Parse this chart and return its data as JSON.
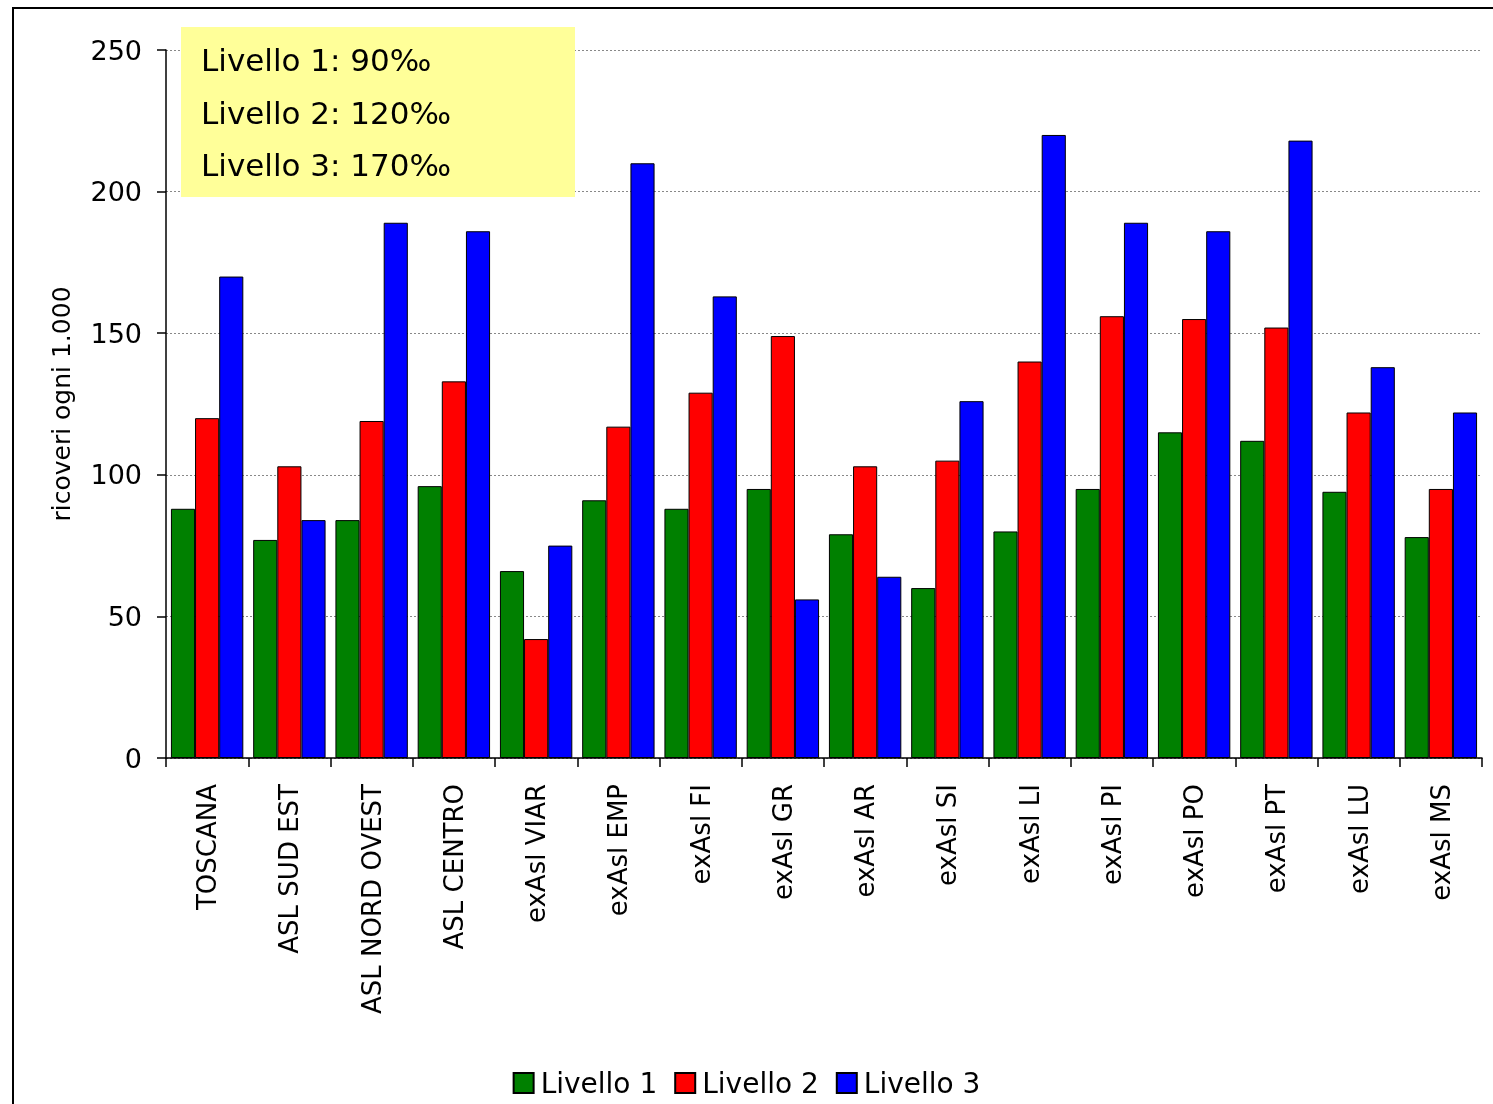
{
  "chart_data": {
    "type": "bar",
    "ylabel": "ricoveri ogni 1.000",
    "categories": [
      "TOSCANA",
      "ASL SUD EST",
      "ASL NORD OVEST",
      "ASL CENTRO",
      "exAsl VIAR",
      "exAsl EMP",
      "exAsl FI",
      "exAsl GR",
      "exAsl AR",
      "exAsl SI",
      "exAsl LI",
      "exAsl PI",
      "exAsl PO",
      "exAsl PT",
      "exAsl LU",
      "exAsl MS"
    ],
    "series": [
      {
        "name": "Livello 1",
        "color": "#008000",
        "values": [
          88,
          77,
          84,
          96,
          66,
          91,
          88,
          95,
          79,
          60,
          80,
          95,
          115,
          112,
          94,
          78
        ]
      },
      {
        "name": "Livello 2",
        "color": "#ff0000",
        "values": [
          120,
          103,
          119,
          133,
          42,
          117,
          129,
          149,
          103,
          105,
          140,
          156,
          155,
          152,
          122,
          95
        ]
      },
      {
        "name": "Livello 3",
        "color": "#0000ff",
        "values": [
          170,
          84,
          189,
          186,
          75,
          210,
          163,
          56,
          64,
          126,
          220,
          189,
          186,
          218,
          138,
          122
        ]
      }
    ],
    "ylim": [
      0,
      250
    ],
    "yticks": [
      0,
      50,
      100,
      150,
      200,
      250
    ],
    "grid": "y",
    "legend": "bottom",
    "annotations": [
      "Livello 1: 90‰",
      "Livello 2: 120‰",
      "Livello 3: 170‰"
    ]
  }
}
